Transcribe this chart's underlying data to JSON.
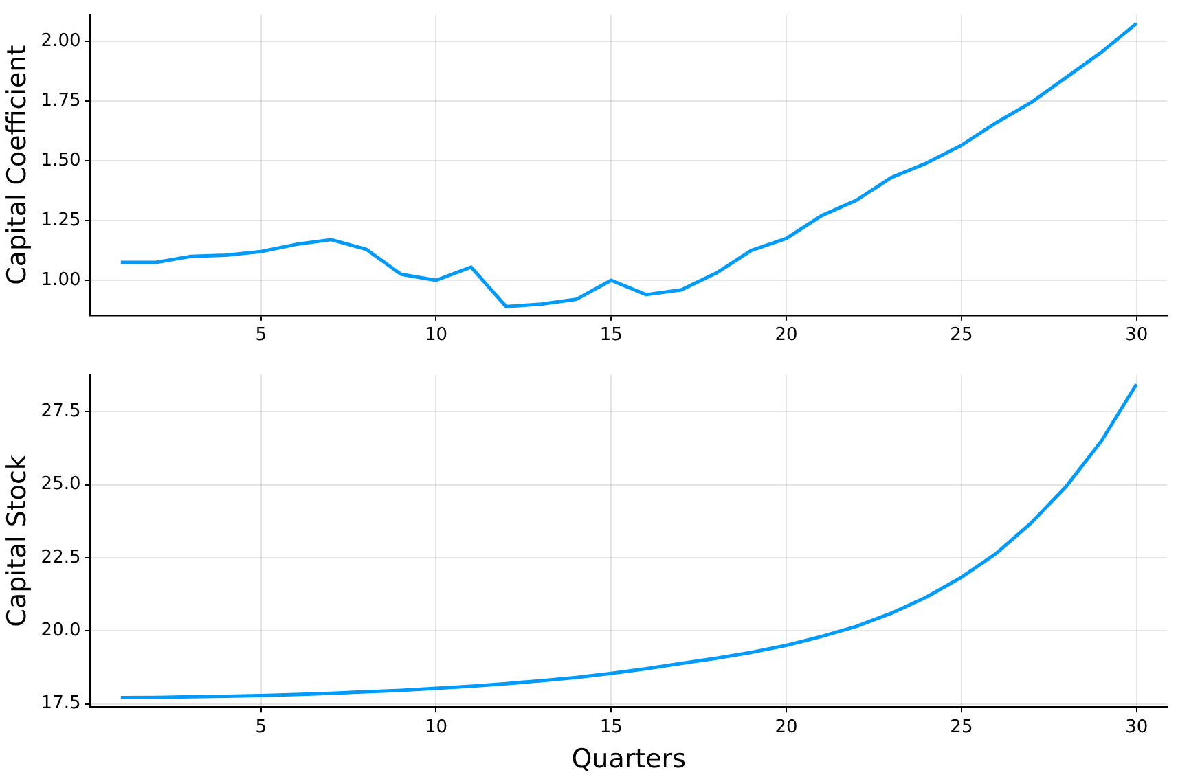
{
  "chart_data": [
    {
      "type": "line",
      "ylabel": "Capital Coefficient",
      "color": "#009af9",
      "grid": true,
      "x": [
        1,
        2,
        3,
        4,
        5,
        6,
        7,
        8,
        9,
        10,
        11,
        12,
        13,
        14,
        15,
        16,
        17,
        18,
        19,
        20,
        21,
        22,
        23,
        24,
        25,
        26,
        27,
        28,
        29,
        30
      ],
      "values": [
        1.075,
        1.075,
        1.1,
        1.105,
        1.12,
        1.15,
        1.17,
        1.13,
        1.025,
        1.0,
        1.055,
        0.89,
        0.9,
        0.92,
        1.0,
        0.94,
        0.96,
        1.03,
        1.125,
        1.175,
        1.27,
        1.335,
        1.43,
        1.49,
        1.565,
        1.66,
        1.745,
        1.85,
        1.955,
        2.075
      ],
      "xlim": [
        0.13,
        30.87
      ],
      "xticks": [
        5,
        10,
        15,
        20,
        25,
        30
      ],
      "ylim": [
        0.854,
        2.111
      ],
      "yticks": [
        {
          "value": 1,
          "label": "1.00"
        },
        {
          "value": 1.25,
          "label": "1.25"
        },
        {
          "value": 1.5,
          "label": "1.50"
        },
        {
          "value": 1.75,
          "label": "1.75"
        },
        {
          "value": 2,
          "label": "2.00"
        }
      ]
    },
    {
      "type": "line",
      "ylabel": "Capital Stock",
      "xlabel": "Quarters",
      "color": "#009af9",
      "grid": true,
      "x": [
        1,
        2,
        3,
        4,
        5,
        6,
        7,
        8,
        9,
        10,
        11,
        12,
        13,
        14,
        15,
        16,
        17,
        18,
        19,
        20,
        21,
        22,
        23,
        24,
        25,
        26,
        27,
        28,
        29,
        30
      ],
      "values": [
        17.71,
        17.72,
        17.74,
        17.76,
        17.78,
        17.82,
        17.86,
        17.91,
        17.96,
        18.03,
        18.1,
        18.19,
        18.29,
        18.4,
        18.54,
        18.7,
        18.88,
        19.06,
        19.26,
        19.5,
        19.8,
        20.15,
        20.6,
        21.15,
        21.83,
        22.65,
        23.7,
        24.95,
        26.5,
        28.44
      ],
      "xlim": [
        0.13,
        30.87
      ],
      "xticks": [
        5,
        10,
        15,
        20,
        25,
        30
      ],
      "ylim": [
        17.39,
        28.76
      ],
      "yticks": [
        {
          "value": 17.5,
          "label": "17.5"
        },
        {
          "value": 20,
          "label": "20.0"
        },
        {
          "value": 22.5,
          "label": "22.5"
        },
        {
          "value": 25,
          "label": "25.0"
        },
        {
          "value": 27.5,
          "label": "27.5"
        }
      ]
    }
  ]
}
